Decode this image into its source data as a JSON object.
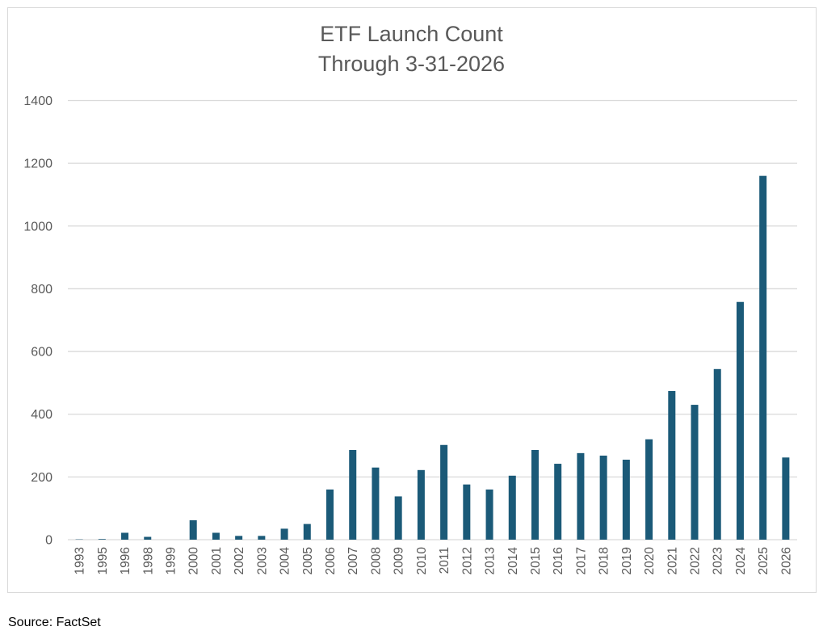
{
  "colors": {
    "bar": "#1b5a78",
    "grid": "#d9d9d9",
    "tick_text": "#595959",
    "title_text": "#595959"
  },
  "source_label": "Source: FactSet",
  "chart_data": {
    "type": "bar",
    "title": "ETF Launch Count",
    "subtitle": "Through 3-31-2026",
    "xlabel": "",
    "ylabel": "",
    "ylim": [
      0,
      1400
    ],
    "yticks": [
      0,
      200,
      400,
      600,
      800,
      1000,
      1200,
      1400
    ],
    "grid": true,
    "legend": "none",
    "categories": [
      "1993",
      "1995",
      "1996",
      "1998",
      "1999",
      "2000",
      "2001",
      "2002",
      "2003",
      "2004",
      "2005",
      "2006",
      "2007",
      "2008",
      "2009",
      "2010",
      "2011",
      "2012",
      "2013",
      "2014",
      "2015",
      "2016",
      "2017",
      "2018",
      "2019",
      "2020",
      "2021",
      "2022",
      "2023",
      "2024",
      "2025",
      "2026"
    ],
    "values": [
      1,
      2,
      22,
      9,
      0,
      62,
      22,
      12,
      12,
      35,
      50,
      160,
      286,
      230,
      138,
      222,
      302,
      176,
      160,
      204,
      286,
      242,
      276,
      268,
      255,
      320,
      474,
      430,
      544,
      758,
      1160,
      262
    ]
  }
}
